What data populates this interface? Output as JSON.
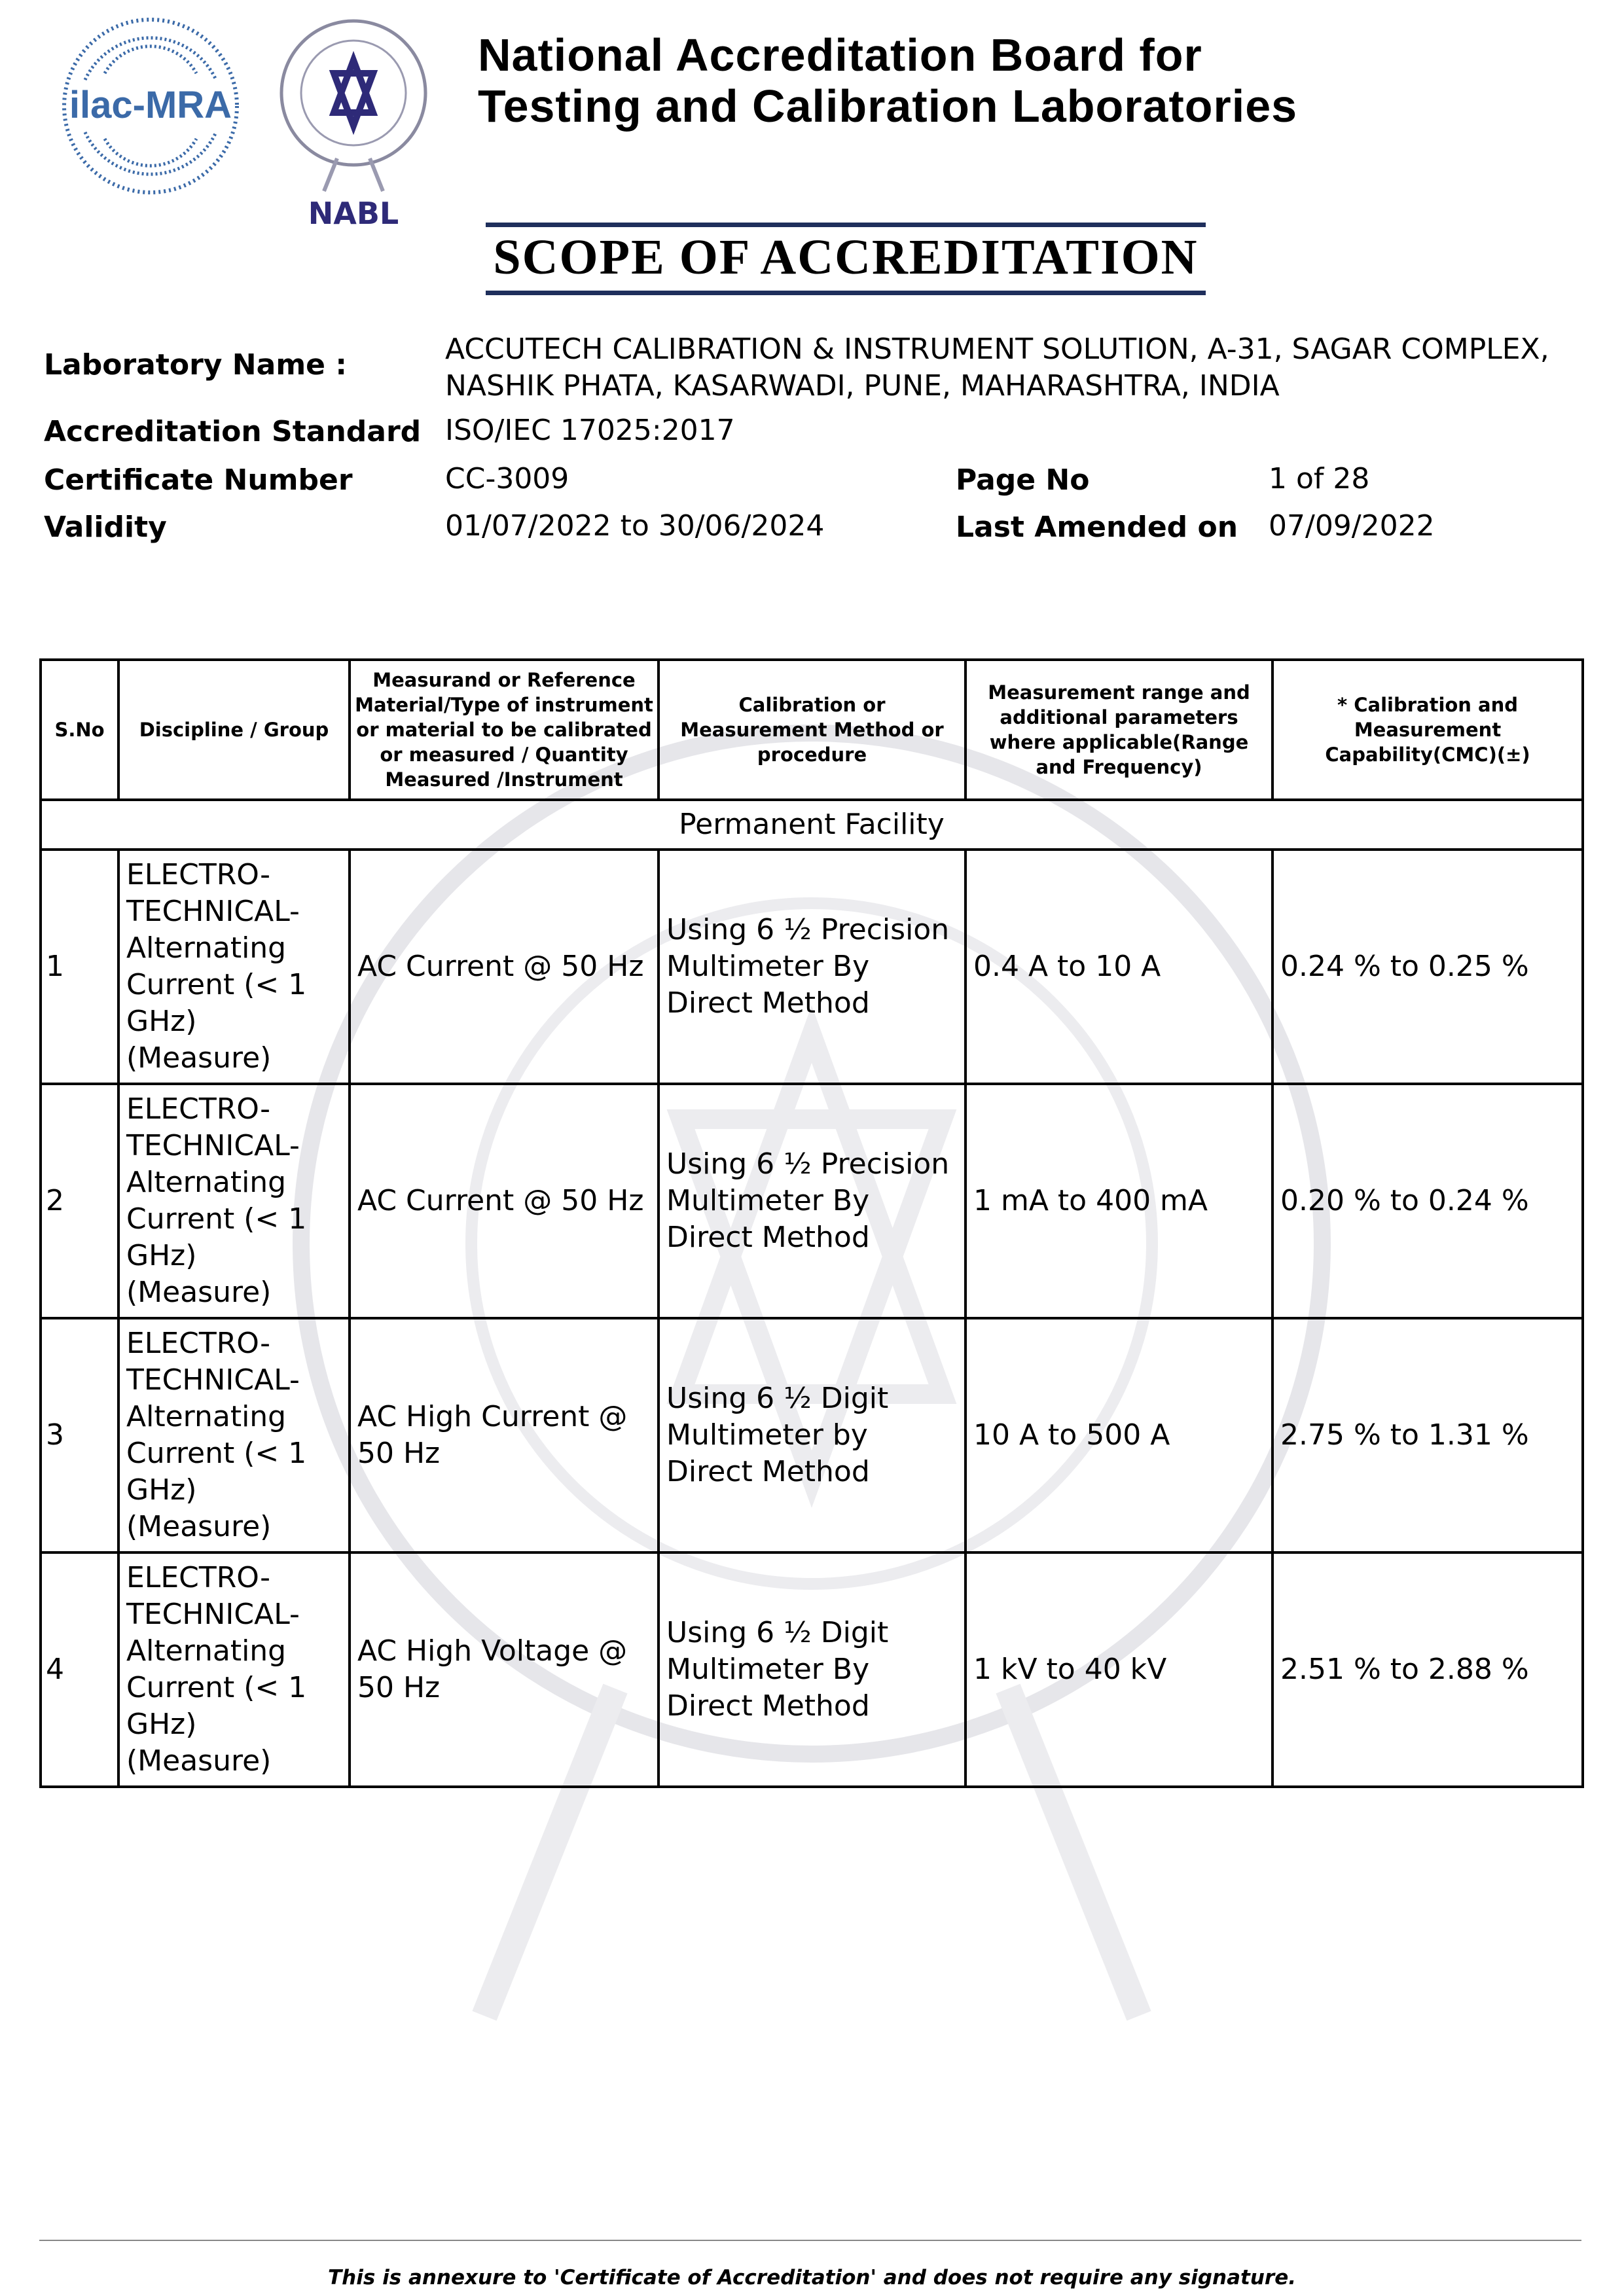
{
  "header": {
    "logos": [
      "ilac-MRA",
      "NABL"
    ],
    "title_line1": "National Accreditation Board for",
    "title_line2": "Testing and Calibration Laboratories",
    "scope_title": "SCOPE OF ACCREDITATION",
    "accent_color": "#1f2f5c"
  },
  "info": {
    "lab_name_label": "Laboratory Name :",
    "lab_name_line1": "ACCUTECH CALIBRATION & INSTRUMENT SOLUTION, A-31, SAGAR COMPLEX,",
    "lab_name_line2": "NASHIK PHATA, KASARWADI, PUNE, MAHARASHTRA, INDIA",
    "standard_label": "Accreditation Standard",
    "standard_value": "ISO/IEC 17025:2017",
    "cert_label": "Certificate Number",
    "cert_value": "CC-3009",
    "page_label": "Page No",
    "page_value": "1 of 28",
    "validity_label": "Validity",
    "validity_value": "01/07/2022 to 30/06/2024",
    "amended_label": "Last Amended on",
    "amended_value": "07/09/2022"
  },
  "table": {
    "headers": [
      "S.No",
      "Discipline / Group",
      "Measurand or Reference Material/Type of instrument or material to be calibrated or measured / Quantity Measured /Instrument",
      "Calibration or Measurement Method or procedure",
      "Measurement range and additional parameters where applicable(Range and Frequency)",
      "* Calibration and Measurement Capability(CMC)(±)"
    ],
    "section": "Permanent Facility",
    "rows": [
      {
        "sno": "1",
        "discipline": "ELECTRO-TECHNICAL-Alternating Current (< 1 GHz) (Measure)",
        "measurand": "AC Current @ 50 Hz",
        "method": "Using 6 ½ Precision Multimeter By Direct Method",
        "range": "0.4 A to 10 A",
        "cmc": "0.24 % to 0.25 %"
      },
      {
        "sno": "2",
        "discipline": "ELECTRO-TECHNICAL-Alternating Current (< 1 GHz) (Measure)",
        "measurand": "AC Current @ 50 Hz",
        "method": "Using 6 ½ Precision Multimeter By Direct Method",
        "range": "1 mA to 400 mA",
        "cmc": "0.20 % to 0.24 %"
      },
      {
        "sno": "3",
        "discipline": "ELECTRO-TECHNICAL-Alternating Current (< 1 GHz) (Measure)",
        "measurand": "AC High Current @ 50 Hz",
        "method": "Using 6 ½ Digit Multimeter by Direct Method",
        "range": "10 A to 500 A",
        "cmc": "2.75 % to 1.31 %"
      },
      {
        "sno": "4",
        "discipline": "ELECTRO-TECHNICAL-Alternating Current (< 1 GHz) (Measure)",
        "measurand": "AC High Voltage @ 50 Hz",
        "method": "Using 6 ½ Digit Multimeter By Direct Method",
        "range": "1 kV to 40 kV",
        "cmc": "2.51 % to 2.88 %"
      }
    ]
  },
  "footer": {
    "note": "This is annexure to 'Certificate of Accreditation' and does not require any signature."
  }
}
